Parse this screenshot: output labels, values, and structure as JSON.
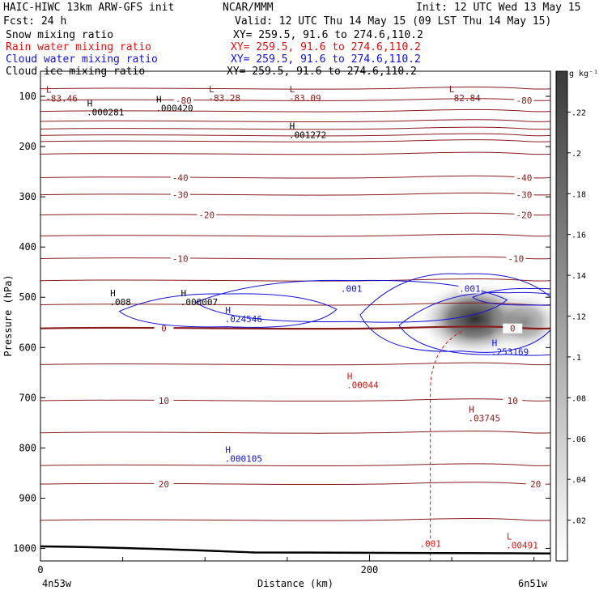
{
  "header": {
    "title": "HAIC-HIWC 13km ARW-GFS init",
    "org": "NCAR/MMM",
    "init": "Init: 12 UTC Wed 13 May 15",
    "fcst": "Fcst:  24 h",
    "valid": "Valid: 12 UTC Thu 14 May 15 (09 LST Thu 14 May 15)"
  },
  "fields": [
    {
      "name": "Snow mixing ratio",
      "xy": "XY= 259.5, 91.6 to 274.6,110.2",
      "color": "#000000"
    },
    {
      "name": "Rain water mixing ratio",
      "xy": "XY= 259.5, 91.6 to 274.6,110.2",
      "color": "#e01010"
    },
    {
      "name": "Cloud water mixing ratio",
      "xy": "XY= 259.5, 91.6 to 274.6,110.2",
      "color": "#1010e0"
    },
    {
      "name": "Cloud ice mixing ratio",
      "xy": "XY= 259.5, 91.6 to 274.6,110.2",
      "color": "#000000"
    }
  ],
  "colorbar": {
    "unit": "g kg⁻¹",
    "ticks": [
      ".02",
      ".04",
      ".06",
      ".08",
      ".1",
      ".12",
      ".14",
      ".16",
      ".18",
      ".2",
      ".22"
    ],
    "top": "#3a3a3a",
    "bottom": "#ffffff"
  },
  "chart_data": {
    "type": "cross-section contour",
    "xlabel": "Distance (km)",
    "ylabel": "Pressure (hPa)",
    "xlim": [
      0,
      310
    ],
    "ylim": [
      1025,
      50
    ],
    "x_ticks": [
      0,
      200
    ],
    "y_ticks": [
      100,
      200,
      300,
      400,
      500,
      600,
      700,
      800,
      900,
      1000
    ],
    "x_endpoints": [
      "4n53w",
      "6n51w"
    ],
    "temperature_color": "#8b1a1a",
    "temperature_labels": [
      {
        "x": 87,
        "p": 108,
        "v": "-80"
      },
      {
        "x": 294,
        "p": 108,
        "v": "-80"
      },
      {
        "x": 85,
        "p": 262,
        "v": "-40"
      },
      {
        "x": 294,
        "p": 262,
        "v": "-40"
      },
      {
        "x": 85,
        "p": 296,
        "v": "-30"
      },
      {
        "x": 294,
        "p": 296,
        "v": "-30"
      },
      {
        "x": 101,
        "p": 336,
        "v": "-20"
      },
      {
        "x": 294,
        "p": 336,
        "v": "-20"
      },
      {
        "x": 85,
        "p": 423,
        "v": "-10"
      },
      {
        "x": 289,
        "p": 423,
        "v": "-10"
      },
      {
        "x": 75,
        "p": 562,
        "v": "0"
      },
      {
        "x": 287,
        "p": 562,
        "v": "0"
      },
      {
        "x": 75,
        "p": 706,
        "v": "10"
      },
      {
        "x": 287,
        "p": 706,
        "v": "10"
      },
      {
        "x": 75,
        "p": 872,
        "v": "20"
      },
      {
        "x": 301,
        "p": 872,
        "v": "20"
      }
    ],
    "temperature_levels_hpa": [
      85,
      108,
      130,
      150,
      165,
      178,
      190,
      215,
      262,
      296,
      336,
      378,
      423,
      467,
      515,
      562,
      634,
      706,
      770,
      835,
      872,
      944
    ],
    "extrema": [
      {
        "x": 5,
        "p": 93,
        "mark": "L",
        "value": "-83.46",
        "color": "#8b1a1a"
      },
      {
        "x": 104,
        "p": 92,
        "mark": "L",
        "value": "-83.28",
        "color": "#8b1a1a"
      },
      {
        "x": 153,
        "p": 92,
        "mark": "L",
        "value": "-83.09",
        "color": "#8b1a1a"
      },
      {
        "x": 250,
        "p": 92,
        "mark": "L",
        "value": "-82.84",
        "color": "#8b1a1a"
      },
      {
        "x": 30,
        "p": 120,
        "mark": "H",
        "value": ".000281",
        "color": "#000000"
      },
      {
        "x": 72,
        "p": 112,
        "mark": "H",
        "value": ".000420",
        "color": "#000000"
      },
      {
        "x": 153,
        "p": 165,
        "mark": "H",
        "value": ".001272",
        "color": "#000000"
      },
      {
        "x": 44,
        "p": 498,
        "mark": "H",
        "value": ".008",
        "color": "#000000"
      },
      {
        "x": 87,
        "p": 498,
        "mark": "H",
        "value": ".000007",
        "color": "#000000"
      },
      {
        "x": 114,
        "p": 532,
        "mark": "H",
        "value": ".024546",
        "color": "#1010e0"
      },
      {
        "x": 276,
        "p": 597,
        "mark": "H",
        "value": ".253169",
        "color": "#1010e0"
      },
      {
        "x": 188,
        "p": 663,
        "mark": "H",
        "value": ".00044",
        "color": "#e01010"
      },
      {
        "x": 262,
        "p": 729,
        "mark": "H",
        "value": ".03745",
        "color": "#8b1a1a"
      },
      {
        "x": 114,
        "p": 810,
        "mark": "H",
        "value": ".000105",
        "color": "#1010e0"
      },
      {
        "x": 285,
        "p": 982,
        "mark": "L",
        "value": ".00491",
        "color": "#e01010"
      }
    ],
    "cloud_water_labels": [
      {
        "x": 189,
        "p": 483,
        "v": ".001"
      },
      {
        "x": 261,
        "p": 483,
        "v": ".001"
      }
    ],
    "rain_labels": [
      {
        "x": 237,
        "p": 990,
        "v": ".001"
      }
    ],
    "snow_maximum": {
      "x": 264,
      "p": 543,
      "value_g_kg": 0.22
    }
  }
}
